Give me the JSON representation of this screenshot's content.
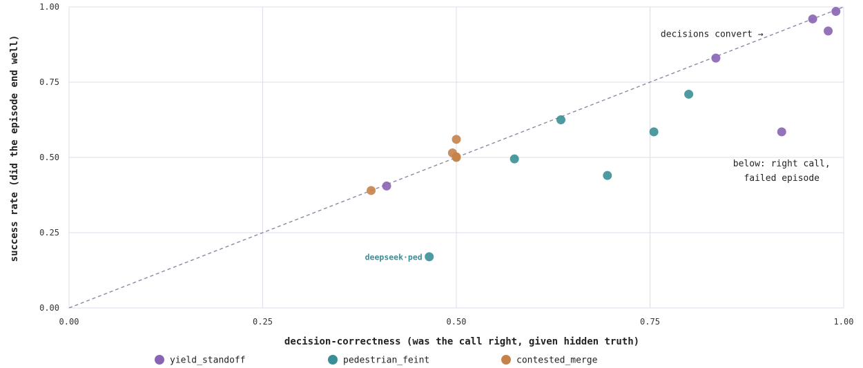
{
  "chart_data": {
    "type": "scatter",
    "xlabel": "decision-correctness (was the call right, given hidden truth)",
    "ylabel": "success rate (did the episode end well)",
    "xlim": [
      0,
      1
    ],
    "ylim": [
      0,
      1
    ],
    "x_ticks": [
      "0.00",
      "0.25",
      "0.50",
      "0.75",
      "1.00"
    ],
    "y_ticks": [
      "0.00",
      "0.25",
      "0.50",
      "0.75",
      "1.00"
    ],
    "grid": true,
    "diagonal_reference": true,
    "legend_position": "bottom",
    "series": [
      {
        "name": "yield_standoff",
        "color": "#8a64b4",
        "points": [
          {
            "x": 0.41,
            "y": 0.405
          },
          {
            "x": 0.835,
            "y": 0.83
          },
          {
            "x": 0.92,
            "y": 0.585
          },
          {
            "x": 0.96,
            "y": 0.96
          },
          {
            "x": 0.98,
            "y": 0.92
          },
          {
            "x": 0.99,
            "y": 0.985
          }
        ]
      },
      {
        "name": "pedestrian_feint",
        "color": "#3a8f96",
        "points": [
          {
            "x": 0.465,
            "y": 0.17,
            "label": "deepseek·ped"
          },
          {
            "x": 0.575,
            "y": 0.495
          },
          {
            "x": 0.635,
            "y": 0.625
          },
          {
            "x": 0.695,
            "y": 0.44
          },
          {
            "x": 0.755,
            "y": 0.585
          },
          {
            "x": 0.8,
            "y": 0.71
          }
        ]
      },
      {
        "name": "contested_merge",
        "color": "#c4834a",
        "points": [
          {
            "x": 0.39,
            "y": 0.39
          },
          {
            "x": 0.495,
            "y": 0.515
          },
          {
            "x": 0.5,
            "y": 0.56
          },
          {
            "x": 0.5,
            "y": 0.5
          },
          {
            "x": 0.5,
            "y": 0.502
          }
        ]
      }
    ],
    "annotations": [
      {
        "text": "decisions convert →",
        "x": 0.83,
        "y": 0.9
      },
      {
        "lines": [
          "below: right call,",
          "failed episode"
        ],
        "x": 0.92,
        "y": 0.47
      }
    ]
  }
}
